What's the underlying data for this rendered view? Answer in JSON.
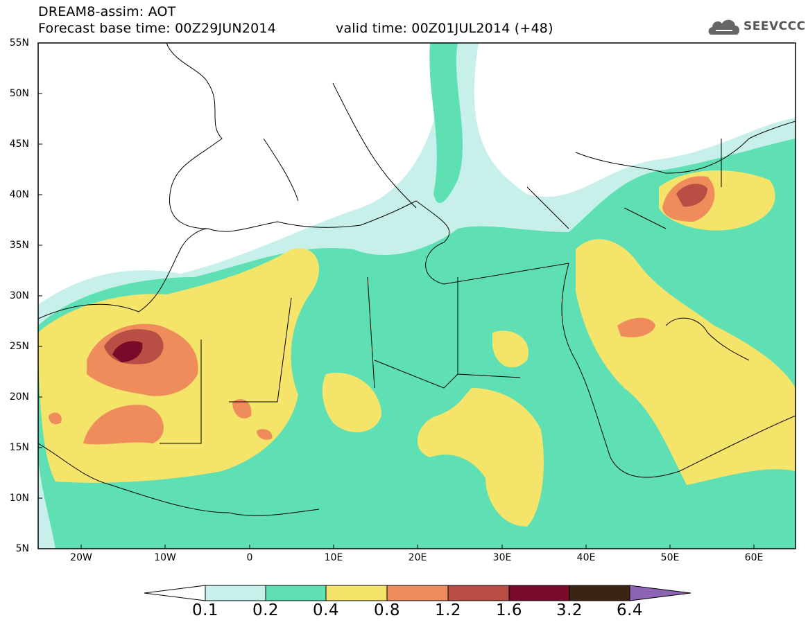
{
  "header": {
    "title": "DREAM8-assim: AOT",
    "base_time": "Forecast base time: 00Z29JUN2014",
    "valid_time": "valid time: 00Z01JUL2014 (+48)"
  },
  "logo": {
    "text": "SEEVCCC",
    "icon": "cloud-icon"
  },
  "axes": {
    "lat_labels": [
      "55N",
      "50N",
      "45N",
      "40N",
      "35N",
      "30N",
      "25N",
      "20N",
      "15N",
      "10N",
      "5N"
    ],
    "lon_labels": [
      "20W",
      "10W",
      "0",
      "10E",
      "20E",
      "30E",
      "40E",
      "50E",
      "60E"
    ]
  },
  "legend": {
    "labels": [
      "0.1",
      "0.2",
      "0.4",
      "0.8",
      "1.2",
      "1.6",
      "3.2",
      "6.4"
    ],
    "colors": [
      "#ffffff",
      "#c8f0ea",
      "#5ee0b4",
      "#f5e46a",
      "#ef8c5c",
      "#b84e44",
      "#7a0a2a",
      "#3c2414",
      "#8c64b4"
    ]
  }
}
